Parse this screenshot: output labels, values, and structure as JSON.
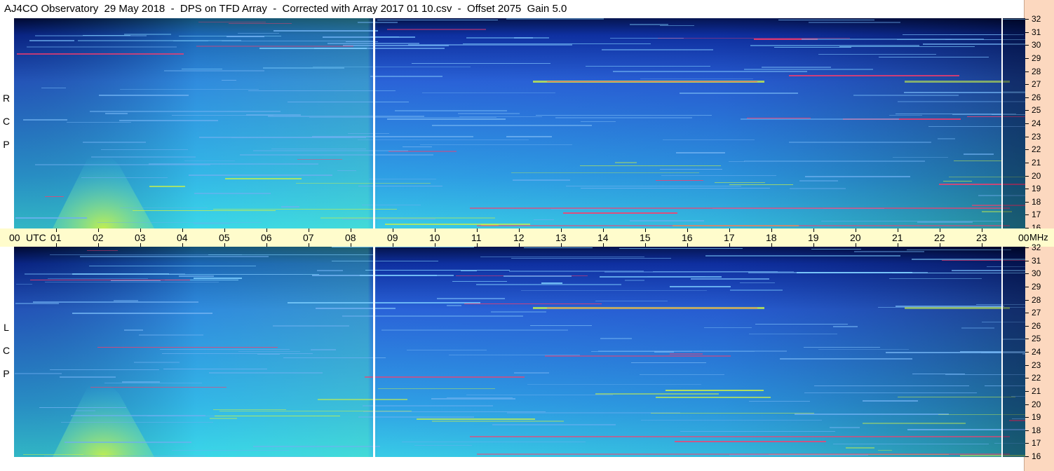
{
  "title": "AJ4CO Observatory  29 May 2018  -  DPS on TFD Array  -  Corrected with Array 2017 01 10.csv  -  Offset 2075  Gain 5.0",
  "panels": [
    {
      "id": "rcp",
      "polarization": [
        "R",
        "C",
        "P"
      ]
    },
    {
      "id": "lcp",
      "polarization": [
        "L",
        "C",
        "P"
      ]
    }
  ],
  "frequency_axis": {
    "unit": "MHz",
    "labels": [
      "32",
      "31",
      "30",
      "29",
      "28",
      "27",
      "26",
      "25",
      "24",
      "23",
      "22",
      "21",
      "20",
      "19",
      "18",
      "17",
      "16"
    ]
  },
  "time_axis": {
    "unit": "UTC",
    "start_label": "00",
    "labels": [
      "01",
      "02",
      "03",
      "04",
      "05",
      "06",
      "07",
      "08",
      "09",
      "10",
      "11",
      "12",
      "13",
      "14",
      "15",
      "16",
      "17",
      "18",
      "19",
      "20",
      "21",
      "22",
      "23"
    ],
    "end_label": "00",
    "end_unit": "MHz"
  },
  "colors": {
    "background": "#ffffff",
    "time_axis_bg": "#fffccc",
    "right_strip_bg": "#fcd8bf",
    "spectrogram_low": "#000a3a",
    "spectrogram_mid": "#2a63d8",
    "spectrogram_high": "#3ad7e8",
    "spectrogram_burst": "#c8f04a",
    "spectrogram_peak": "#ff3a6a"
  }
}
